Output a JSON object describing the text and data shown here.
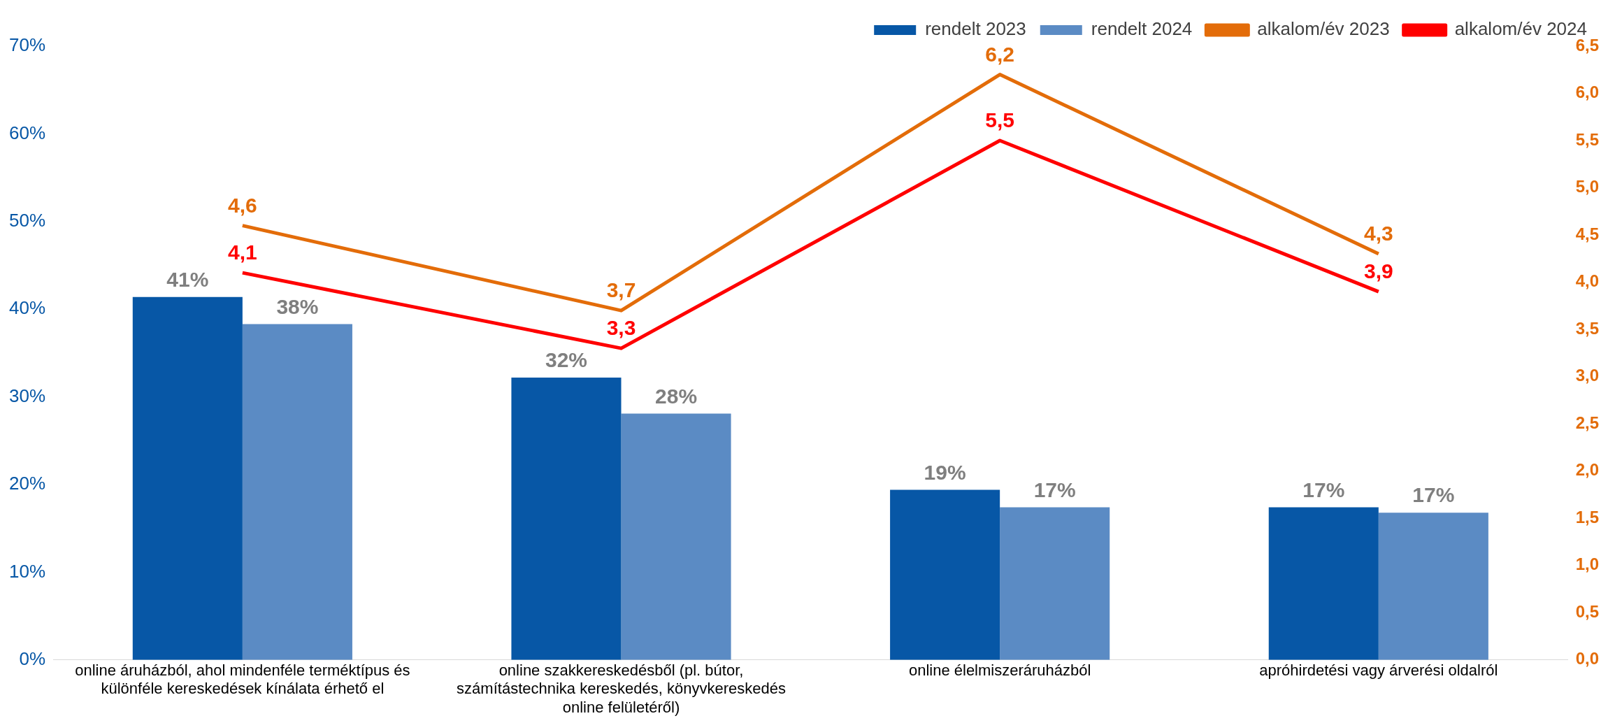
{
  "chart_data": {
    "type": "bar",
    "categories": [
      "online áruházból, ahol mindenféle terméktípus és különféle kereskedések kínálata érhető el",
      "online szakkereskedésből (pl. bútor, számítástechnika kereskedés, könyvkereskedés online felületéről)",
      "online élelmiszeráruházból",
      "apróhirdetési vagy árverési oldalról"
    ],
    "series": [
      {
        "name": "rendelt 2023",
        "color": "#0757a6",
        "values": [
          41.4,
          32.2,
          19.4,
          17.4
        ],
        "value_labels": [
          "41%",
          "32%",
          "19%",
          "17%"
        ]
      },
      {
        "name": "rendelt 2024",
        "color": "#5b8bc4",
        "values": [
          38.3,
          28.1,
          17.4,
          16.8
        ],
        "value_labels": [
          "38%",
          "28%",
          "17%",
          "17%"
        ]
      },
      {
        "name": "alkalom/év 2023",
        "type": "line",
        "axis": "y2",
        "color": "#e36c09",
        "values": [
          4.6,
          3.7,
          6.2,
          4.3
        ],
        "value_labels": [
          "4,6",
          "3,7",
          "6,2",
          "4,3"
        ]
      },
      {
        "name": "alkalom/év 2024",
        "type": "line",
        "axis": "y2",
        "color": "#ff0000",
        "values": [
          4.1,
          3.3,
          5.5,
          3.9
        ],
        "value_labels": [
          "4,1",
          "3,3",
          "5,5",
          "3,9"
        ]
      }
    ],
    "ylim": [
      0,
      70
    ],
    "yticks": [
      {
        "value": 0,
        "label": "0%"
      },
      {
        "value": 10,
        "label": "10%"
      },
      {
        "value": 20,
        "label": "20%"
      },
      {
        "value": 30,
        "label": "30%"
      },
      {
        "value": 40,
        "label": "40%"
      },
      {
        "value": 50,
        "label": "50%"
      },
      {
        "value": 60,
        "label": "60%"
      },
      {
        "value": 70,
        "label": "70%"
      }
    ],
    "y2lim": [
      0,
      6.5
    ],
    "y2ticks": [
      {
        "value": 0,
        "label": "0,0"
      },
      {
        "value": 0.5,
        "label": "0,5"
      },
      {
        "value": 1,
        "label": "1,0"
      },
      {
        "value": 1.5,
        "label": "1,5"
      },
      {
        "value": 2,
        "label": "2,0"
      },
      {
        "value": 2.5,
        "label": "2,5"
      },
      {
        "value": 3,
        "label": "3,0"
      },
      {
        "value": 3.5,
        "label": "3,5"
      },
      {
        "value": 4,
        "label": "4,0"
      },
      {
        "value": 4.5,
        "label": "4,5"
      },
      {
        "value": 5,
        "label": "5,0"
      },
      {
        "value": 5.5,
        "label": "5,5"
      },
      {
        "value": 6,
        "label": "6,0"
      },
      {
        "value": 6.5,
        "label": "6,5"
      }
    ],
    "grid": false,
    "legend": "top right"
  }
}
